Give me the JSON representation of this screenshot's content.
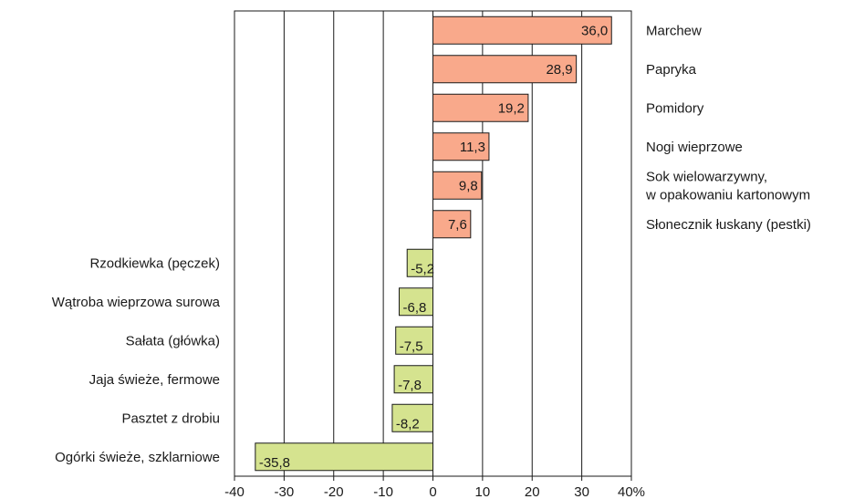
{
  "chart_data": {
    "type": "bar",
    "orientation": "horizontal",
    "categories": [
      "Marchew",
      "Papryka",
      "Pomidory",
      "Nogi wieprzowe",
      "Sok wielowarzywny,\nw opakowaniu kartonowym",
      "Słonecznik łuskany (pestki)",
      "Rzodkiewka (pęczek)",
      "Wątroba wieprzowa surowa",
      "Sałata (główka)",
      "Jaja świeże, fermowe",
      "Pasztet z drobiu",
      "Ogórki świeże, szklarniowe"
    ],
    "values": [
      36.0,
      28.9,
      19.2,
      11.3,
      9.8,
      7.6,
      -5.2,
      -6.8,
      -7.5,
      -7.8,
      -8.2,
      -35.8
    ],
    "value_labels": [
      "36,0",
      "28,9",
      "19,2",
      "11,3",
      "9,8",
      "7,6",
      "-5,2",
      "-6,8",
      "-7,5",
      "-7,8",
      "-8,2",
      "-35,8"
    ],
    "xlim": [
      -40,
      40
    ],
    "x_ticks": [
      -40,
      -30,
      -20,
      -10,
      0,
      10,
      20,
      30,
      40
    ],
    "x_tick_labels": [
      "-40",
      "-30",
      "-20",
      "-10",
      "0",
      "10",
      "20",
      "30",
      "40%"
    ],
    "grid": "vertical",
    "colors": {
      "positive": "#f9a98b",
      "negative": "#d5e38f",
      "border": "#1a1a1a",
      "grid": "#1a1a1a"
    }
  }
}
